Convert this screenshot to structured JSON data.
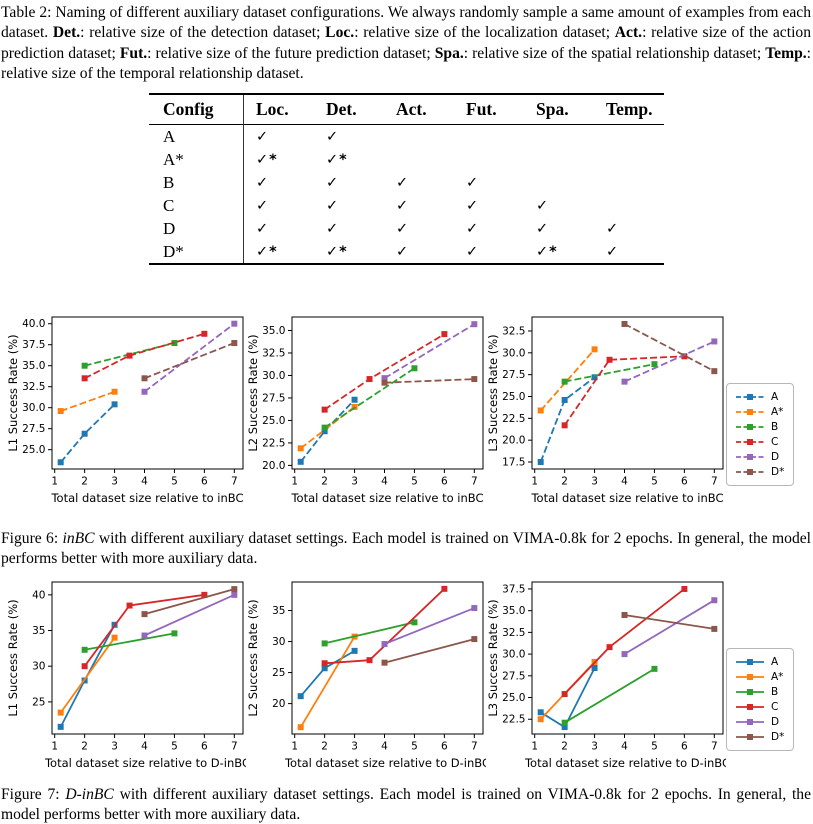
{
  "table_caption": {
    "segments": [
      {
        "text": "Table 2: Naming of different auxiliary dataset configurations. We always randomly sample a same amount of examples from each dataset. ",
        "style": "normal"
      },
      {
        "text": "Det.",
        "style": "bold"
      },
      {
        "text": ": relative size of the detection dataset; ",
        "style": "normal"
      },
      {
        "text": "Loc.",
        "style": "bold"
      },
      {
        "text": ": relative size of the localization dataset; ",
        "style": "normal"
      },
      {
        "text": "Act.",
        "style": "bold"
      },
      {
        "text": ": relative size of the action prediction dataset; ",
        "style": "normal"
      },
      {
        "text": "Fut.",
        "style": "bold"
      },
      {
        "text": ": relative size of the future prediction dataset; ",
        "style": "normal"
      },
      {
        "text": "Spa.",
        "style": "bold"
      },
      {
        "text": ": relative size of the spatial relationship dataset; ",
        "style": "normal"
      },
      {
        "text": "Temp.",
        "style": "bold"
      },
      {
        "text": ": relative size of the temporal relationship dataset.",
        "style": "normal"
      }
    ]
  },
  "config_table": {
    "headers": [
      "Config",
      "Loc.",
      "Det.",
      "Act.",
      "Fut.",
      "Spa.",
      "Temp."
    ],
    "rows": [
      {
        "config": "A",
        "marks": [
          "✓",
          "✓",
          "",
          "",
          "",
          ""
        ]
      },
      {
        "config": "A*",
        "marks": [
          "✓*",
          "✓*",
          "",
          "",
          "",
          ""
        ]
      },
      {
        "config": "B",
        "marks": [
          "✓",
          "✓",
          "✓",
          "✓",
          "",
          ""
        ]
      },
      {
        "config": "C",
        "marks": [
          "✓",
          "✓",
          "✓",
          "✓",
          "✓",
          ""
        ]
      },
      {
        "config": "D",
        "marks": [
          "✓",
          "✓",
          "✓",
          "✓",
          "✓",
          "✓"
        ]
      },
      {
        "config": "D*",
        "marks": [
          "✓*",
          "✓*",
          "✓",
          "✓",
          "✓*",
          "✓"
        ]
      }
    ]
  },
  "figure6_caption": {
    "segments": [
      {
        "text": "Figure 6: ",
        "style": "normal"
      },
      {
        "text": "inBC",
        "style": "italic"
      },
      {
        "text": " with different auxiliary dataset settings. Each model is trained on VIMA-0.8k for 2 epochs. In general, the model performs better with more auxiliary data.",
        "style": "normal"
      }
    ]
  },
  "figure7_caption": {
    "segments": [
      {
        "text": "Figure 7: ",
        "style": "normal"
      },
      {
        "text": "D-inBC",
        "style": "italic"
      },
      {
        "text": " with different auxiliary dataset settings. Each model is trained on VIMA-0.8k for 2 epochs. In general, the model performs better with more auxiliary data.",
        "style": "normal"
      }
    ]
  },
  "legend": {
    "entries": [
      {
        "label": "A",
        "color": "#1f77b4"
      },
      {
        "label": "A*",
        "color": "#ff7f0e"
      },
      {
        "label": "B",
        "color": "#2ca02c"
      },
      {
        "label": "C",
        "color": "#d62728"
      },
      {
        "label": "D",
        "color": "#9467bd"
      },
      {
        "label": "D*",
        "color": "#8c564b"
      }
    ]
  },
  "chart_data": [
    {
      "name": "fig6-l1",
      "figure": "6",
      "type": "line",
      "line_style": "dashed",
      "xlabel": "Total dataset size relative to inBC",
      "ylabel": "L1 Success Rate (%)",
      "xlim": [
        0.91,
        7.29
      ],
      "ylim": [
        22.7,
        40.8
      ],
      "xticks": [
        1,
        2,
        3,
        4,
        5,
        6,
        7
      ],
      "yticks": [
        25.0,
        27.5,
        30.0,
        32.5,
        35.0,
        37.5,
        40.0
      ],
      "ytick_labels": [
        "25.0",
        "27.5",
        "30.0",
        "32.5",
        "35.0",
        "37.5",
        "40.0"
      ],
      "series": [
        {
          "name": "A",
          "color": "#1f77b4",
          "points": [
            [
              1.2,
              23.5
            ],
            [
              2,
              26.9
            ],
            [
              3,
              30.4
            ]
          ]
        },
        {
          "name": "A*",
          "color": "#ff7f0e",
          "points": [
            [
              1.2,
              29.6
            ],
            [
              3,
              31.9
            ]
          ]
        },
        {
          "name": "B",
          "color": "#2ca02c",
          "points": [
            [
              2,
              35.0
            ],
            [
              5,
              37.7
            ]
          ]
        },
        {
          "name": "C",
          "color": "#d62728",
          "points": [
            [
              2,
              33.5
            ],
            [
              3.5,
              36.2
            ],
            [
              6,
              38.8
            ]
          ]
        },
        {
          "name": "D",
          "color": "#9467bd",
          "points": [
            [
              4,
              31.9
            ],
            [
              7,
              40.0
            ]
          ]
        },
        {
          "name": "D*",
          "color": "#8c564b",
          "points": [
            [
              4,
              33.5
            ],
            [
              7,
              37.7
            ]
          ]
        }
      ]
    },
    {
      "name": "fig6-l2",
      "figure": "6",
      "type": "line",
      "line_style": "dashed",
      "xlabel": "Total dataset size relative to inBC",
      "ylabel": "L2 Success Rate (%)",
      "xlim": [
        0.91,
        7.29
      ],
      "ylim": [
        19.6,
        36.5
      ],
      "xticks": [
        1,
        2,
        3,
        4,
        5,
        6,
        7
      ],
      "yticks": [
        20.0,
        22.5,
        25.0,
        27.5,
        30.0,
        32.5,
        35.0
      ],
      "ytick_labels": [
        "20.0",
        "22.5",
        "25.0",
        "27.5",
        "30.0",
        "32.5",
        "35.0"
      ],
      "series": [
        {
          "name": "A",
          "color": "#1f77b4",
          "points": [
            [
              1.2,
              20.4
            ],
            [
              2,
              23.8
            ],
            [
              3,
              27.3
            ]
          ]
        },
        {
          "name": "A*",
          "color": "#ff7f0e",
          "points": [
            [
              1.2,
              21.9
            ],
            [
              3,
              26.5
            ]
          ]
        },
        {
          "name": "B",
          "color": "#2ca02c",
          "points": [
            [
              2,
              24.2
            ],
            [
              5,
              30.8
            ]
          ]
        },
        {
          "name": "C",
          "color": "#d62728",
          "points": [
            [
              2,
              26.2
            ],
            [
              3.5,
              29.6
            ],
            [
              6,
              34.6
            ]
          ]
        },
        {
          "name": "D",
          "color": "#9467bd",
          "points": [
            [
              4,
              29.7
            ],
            [
              7,
              35.7
            ]
          ]
        },
        {
          "name": "D*",
          "color": "#8c564b",
          "points": [
            [
              4,
              29.2
            ],
            [
              7,
              29.6
            ]
          ]
        }
      ]
    },
    {
      "name": "fig6-l3",
      "figure": "6",
      "type": "line",
      "line_style": "dashed",
      "xlabel": "Total dataset size relative to inBC",
      "ylabel": "L3 Success Rate (%)",
      "xlim": [
        0.91,
        7.29
      ],
      "ylim": [
        16.7,
        34.1
      ],
      "xticks": [
        1,
        2,
        3,
        4,
        5,
        6,
        7
      ],
      "yticks": [
        17.5,
        20.0,
        22.5,
        25.0,
        27.5,
        30.0,
        32.5
      ],
      "ytick_labels": [
        "17.5",
        "20.0",
        "22.5",
        "25.0",
        "27.5",
        "30.0",
        "32.5"
      ],
      "series": [
        {
          "name": "A",
          "color": "#1f77b4",
          "points": [
            [
              1.2,
              17.5
            ],
            [
              2,
              24.6
            ],
            [
              3,
              27.2
            ]
          ]
        },
        {
          "name": "A*",
          "color": "#ff7f0e",
          "points": [
            [
              1.2,
              23.4
            ],
            [
              3,
              30.4
            ]
          ]
        },
        {
          "name": "B",
          "color": "#2ca02c",
          "points": [
            [
              2,
              26.7
            ],
            [
              5,
              28.7
            ]
          ]
        },
        {
          "name": "C",
          "color": "#d62728",
          "points": [
            [
              2,
              21.7
            ],
            [
              3.5,
              29.2
            ],
            [
              6,
              29.6
            ]
          ]
        },
        {
          "name": "D",
          "color": "#9467bd",
          "points": [
            [
              4,
              26.7
            ],
            [
              7,
              31.3
            ]
          ]
        },
        {
          "name": "D*",
          "color": "#8c564b",
          "points": [
            [
              4,
              33.3
            ],
            [
              7,
              27.9
            ]
          ]
        }
      ]
    },
    {
      "name": "fig7-l1",
      "figure": "7",
      "type": "line",
      "line_style": "solid",
      "xlabel": "Total dataset size relative to D-inBC",
      "ylabel": "L1 Success Rate (%)",
      "xlim": [
        0.91,
        7.29
      ],
      "ylim": [
        20.5,
        41.8
      ],
      "xticks": [
        1,
        2,
        3,
        4,
        5,
        6,
        7
      ],
      "yticks": [
        25,
        30,
        35,
        40
      ],
      "ytick_labels": [
        "25",
        "30",
        "35",
        "40"
      ],
      "series": [
        {
          "name": "A",
          "color": "#1f77b4",
          "points": [
            [
              1.2,
              21.5
            ],
            [
              2,
              28.0
            ],
            [
              3,
              35.8
            ]
          ]
        },
        {
          "name": "A*",
          "color": "#ff7f0e",
          "points": [
            [
              1.2,
              23.5
            ],
            [
              3,
              34.0
            ]
          ]
        },
        {
          "name": "B",
          "color": "#2ca02c",
          "points": [
            [
              2,
              32.3
            ],
            [
              5,
              34.6
            ]
          ]
        },
        {
          "name": "C",
          "color": "#d62728",
          "points": [
            [
              2,
              30.0
            ],
            [
              3.5,
              38.5
            ],
            [
              6,
              40.0
            ]
          ]
        },
        {
          "name": "D",
          "color": "#9467bd",
          "points": [
            [
              4,
              34.3
            ],
            [
              7,
              40.0
            ]
          ]
        },
        {
          "name": "D*",
          "color": "#8c564b",
          "points": [
            [
              4,
              37.3
            ],
            [
              7,
              40.8
            ]
          ]
        }
      ]
    },
    {
      "name": "fig7-l2",
      "figure": "7",
      "type": "line",
      "line_style": "solid",
      "xlabel": "Total dataset size relative to D-inBC",
      "ylabel": "L2 Success Rate (%)",
      "xlim": [
        0.91,
        7.29
      ],
      "ylim": [
        15.1,
        39.6
      ],
      "xticks": [
        1,
        2,
        3,
        4,
        5,
        6,
        7
      ],
      "yticks": [
        20,
        25,
        30,
        35
      ],
      "ytick_labels": [
        "20",
        "25",
        "30",
        "35"
      ],
      "series": [
        {
          "name": "A",
          "color": "#1f77b4",
          "points": [
            [
              1.2,
              21.2
            ],
            [
              2,
              25.7
            ],
            [
              3,
              28.5
            ]
          ]
        },
        {
          "name": "A*",
          "color": "#ff7f0e",
          "points": [
            [
              1.2,
              16.2
            ],
            [
              3,
              30.8
            ]
          ]
        },
        {
          "name": "B",
          "color": "#2ca02c",
          "points": [
            [
              2,
              29.7
            ],
            [
              5,
              33.1
            ]
          ]
        },
        {
          "name": "C",
          "color": "#d62728",
          "points": [
            [
              2,
              26.5
            ],
            [
              3.5,
              27.0
            ],
            [
              6,
              38.5
            ]
          ]
        },
        {
          "name": "D",
          "color": "#9467bd",
          "points": [
            [
              4,
              29.6
            ],
            [
              7,
              35.4
            ]
          ]
        },
        {
          "name": "D*",
          "color": "#8c564b",
          "points": [
            [
              4,
              26.6
            ],
            [
              7,
              30.4
            ]
          ]
        }
      ]
    },
    {
      "name": "fig7-l3",
      "figure": "7",
      "type": "line",
      "line_style": "solid",
      "xlabel": "Total dataset size relative to D-inBC",
      "ylabel": "L3 Success Rate (%)",
      "xlim": [
        0.91,
        7.29
      ],
      "ylim": [
        20.8,
        38.3
      ],
      "xticks": [
        1,
        2,
        3,
        4,
        5,
        6,
        7
      ],
      "yticks": [
        22.5,
        25.0,
        27.5,
        30.0,
        32.5,
        35.0,
        37.5
      ],
      "ytick_labels": [
        "22.5",
        "25.0",
        "27.5",
        "30.0",
        "32.5",
        "35.0",
        "37.5"
      ],
      "series": [
        {
          "name": "A",
          "color": "#1f77b4",
          "points": [
            [
              1.2,
              23.3
            ],
            [
              2,
              21.6
            ],
            [
              3,
              28.4
            ]
          ]
        },
        {
          "name": "A*",
          "color": "#ff7f0e",
          "points": [
            [
              1.2,
              22.5
            ],
            [
              3,
              29.1
            ]
          ]
        },
        {
          "name": "B",
          "color": "#2ca02c",
          "points": [
            [
              2,
              22.1
            ],
            [
              5,
              28.3
            ]
          ]
        },
        {
          "name": "C",
          "color": "#d62728",
          "points": [
            [
              2,
              25.4
            ],
            [
              3.5,
              30.8
            ],
            [
              6,
              37.5
            ]
          ]
        },
        {
          "name": "D",
          "color": "#9467bd",
          "points": [
            [
              4,
              30.0
            ],
            [
              7,
              36.2
            ]
          ]
        },
        {
          "name": "D*",
          "color": "#8c564b",
          "points": [
            [
              4,
              34.5
            ],
            [
              7,
              32.9
            ]
          ]
        }
      ]
    }
  ]
}
